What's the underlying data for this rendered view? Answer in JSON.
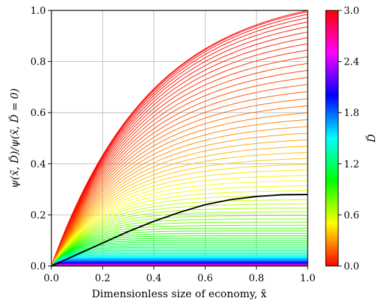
{
  "chart_data": {
    "type": "line",
    "xlabel": "Dimensionless size of economy, x̃",
    "ylabel": "ψ(x̃, D̃)/ψ(x̃, D̃ = 0)",
    "xlim": [
      0.0,
      1.0
    ],
    "ylim": [
      0.0,
      1.0
    ],
    "x_ticks": [
      "0.0",
      "0.2",
      "0.4",
      "0.6",
      "0.8",
      "1.0"
    ],
    "y_ticks": [
      "0.0",
      "0.2",
      "0.4",
      "0.6",
      "0.8",
      "1.0"
    ],
    "grid": true,
    "colorbar": {
      "label": "D̃",
      "range": [
        0.0,
        3.0
      ],
      "ticks": [
        "0.0",
        "0.6",
        "1.2",
        "1.8",
        "2.4",
        "3.0"
      ],
      "colormap": "hsv",
      "colors": [
        "#ff0000",
        "#ffff00",
        "#00ff00",
        "#00ffff",
        "#0000ff",
        "#ff00ff",
        "#ff0000"
      ]
    },
    "series_curves": {
      "count": 90,
      "d_range": [
        0.0,
        3.0
      ],
      "description_points": [
        {
          "D": 0.02,
          "y_at_x1": 1.0
        },
        {
          "D": 0.6,
          "y_at_x1": 0.28
        },
        {
          "D": 1.5,
          "y_at_x1": 0.1
        },
        {
          "D": 3.0,
          "y_at_x1": 0.0
        }
      ]
    },
    "highlight_curve": {
      "color": "#000000",
      "points": [
        [
          0.0,
          0.0
        ],
        [
          0.1,
          0.045
        ],
        [
          0.2,
          0.09
        ],
        [
          0.3,
          0.135
        ],
        [
          0.4,
          0.175
        ],
        [
          0.5,
          0.21
        ],
        [
          0.6,
          0.24
        ],
        [
          0.7,
          0.26
        ],
        [
          0.8,
          0.272
        ],
        [
          0.9,
          0.279
        ],
        [
          1.0,
          0.28
        ]
      ]
    }
  }
}
